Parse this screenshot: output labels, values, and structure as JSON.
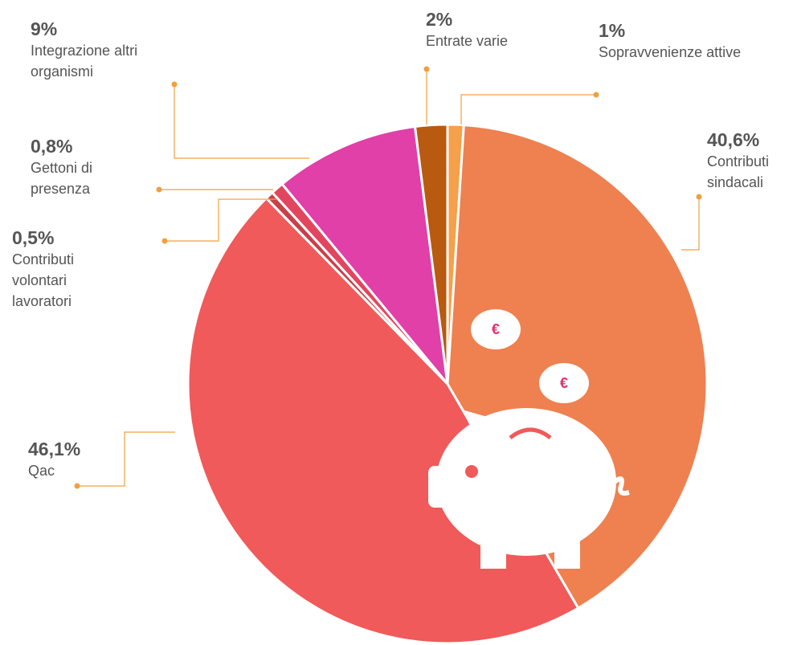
{
  "chart_data": {
    "type": "pie",
    "categories": [
      "Sopravvenienze attive",
      "Contributi sindacali",
      "Qac",
      "Contributi volontari lavoratori",
      "Gettoni di presenza",
      "Integrazione altri organismi",
      "Entrate varie"
    ],
    "values": [
      1,
      40.6,
      46.1,
      0.5,
      0.8,
      9,
      2
    ],
    "value_labels": [
      "1%",
      "40,6%",
      "46,1%",
      "0,5%",
      "0,8%",
      "9%",
      "2%"
    ],
    "colors": [
      "#f5a04a",
      "#ef8050",
      "#f05a5a",
      "#c8404a",
      "#e2465e",
      "#e040a8",
      "#b85a10"
    ],
    "icon_text": "€"
  }
}
